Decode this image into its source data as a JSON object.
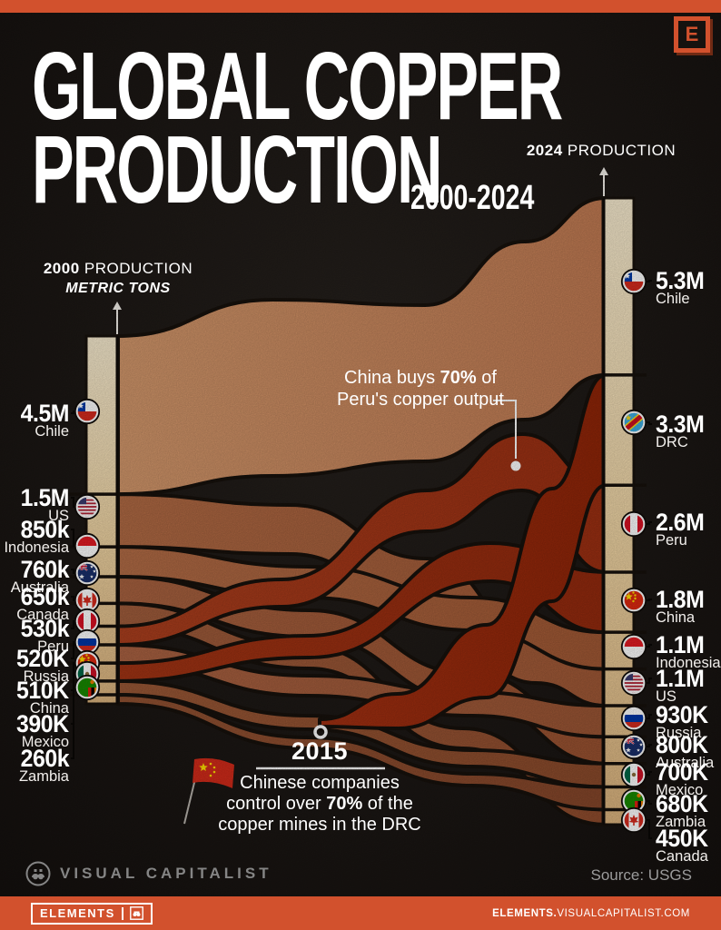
{
  "colors": {
    "accent": "#D2512D",
    "background": "#1C1815",
    "bar_cream": "#F0D9AC",
    "copper": "#AF6440",
    "highlight_red": "#A4330F",
    "outline": "#17110C",
    "text_gray": "#8A8A8A"
  },
  "header": {
    "title_line1": "GLOBAL COPPER",
    "title_line2": "PRODUCTION",
    "subtitle": "2000-2024",
    "badge_letter": "E"
  },
  "axes": {
    "left": {
      "year": "2000",
      "label": " PRODUCTION",
      "unit": "METRIC TONS"
    },
    "right": {
      "year": "2024",
      "label": " PRODUCTION"
    }
  },
  "chart_data": {
    "type": "sankey",
    "unit": "metric tons",
    "left_axis_year": "2000",
    "right_axis_year": "2024",
    "left": [
      {
        "country": "Chile",
        "label": "4.5M",
        "value": 4500000,
        "flag": "chile"
      },
      {
        "country": "US",
        "label": "1.5M",
        "value": 1500000,
        "flag": "us"
      },
      {
        "country": "Indonesia",
        "label": "850k",
        "value": 850000,
        "flag": "indonesia"
      },
      {
        "country": "Australia",
        "label": "760k",
        "value": 760000,
        "flag": "australia"
      },
      {
        "country": "Canada",
        "label": "650k",
        "value": 650000,
        "flag": "canada"
      },
      {
        "country": "Peru",
        "label": "530k",
        "value": 530000,
        "flag": "peru"
      },
      {
        "country": "Russia",
        "label": "520K",
        "value": 520000,
        "flag": "russia"
      },
      {
        "country": "China",
        "label": "510K",
        "value": 510000,
        "flag": "china"
      },
      {
        "country": "Mexico",
        "label": "390K",
        "value": 390000,
        "flag": "mexico"
      },
      {
        "country": "Zambia",
        "label": "260k",
        "value": 260000,
        "flag": "zambia"
      }
    ],
    "right": [
      {
        "country": "Chile",
        "label": "5.3M",
        "value": 5300000,
        "flag": "chile"
      },
      {
        "country": "DRC",
        "label": "3.3M",
        "value": 3300000,
        "flag": "drc"
      },
      {
        "country": "Peru",
        "label": "2.6M",
        "value": 2600000,
        "flag": "peru"
      },
      {
        "country": "China",
        "label": "1.8M",
        "value": 1800000,
        "flag": "china"
      },
      {
        "country": "Indonesia",
        "label": "1.1M",
        "value": 1100000,
        "flag": "indonesia"
      },
      {
        "country": "US",
        "label": "1.1M",
        "value": 1100000,
        "flag": "us"
      },
      {
        "country": "Russia",
        "label": "930K",
        "value": 930000,
        "flag": "russia"
      },
      {
        "country": "Australia",
        "label": "800K",
        "value": 800000,
        "flag": "australia"
      },
      {
        "country": "Mexico",
        "label": "700K",
        "value": 700000,
        "flag": "mexico"
      },
      {
        "country": "Zambia",
        "label": "680K",
        "value": 680000,
        "flag": "zambia"
      },
      {
        "country": "Canada",
        "label": "450K",
        "value": 450000,
        "flag": "canada"
      }
    ],
    "highlighted_flows": [
      "Peru",
      "China",
      "DRC"
    ]
  },
  "annotations": {
    "peru_note": {
      "pre": "China buys ",
      "bold": "70%",
      "post": " of",
      "line2": "Peru's copper output"
    },
    "drc_note": {
      "year": "2015",
      "line1": "Chinese companies",
      "line2_pre": "control over ",
      "line2_bold": "70%",
      "line2_post": " of the",
      "line3": "copper mines in the DRC"
    }
  },
  "footer": {
    "brand": "VISUAL CAPITALIST",
    "source": "Source: USGS",
    "badge": "ELEMENTS",
    "site_bold": "ELEMENTS.",
    "site_rest": "VISUALCAPITALIST.COM"
  }
}
